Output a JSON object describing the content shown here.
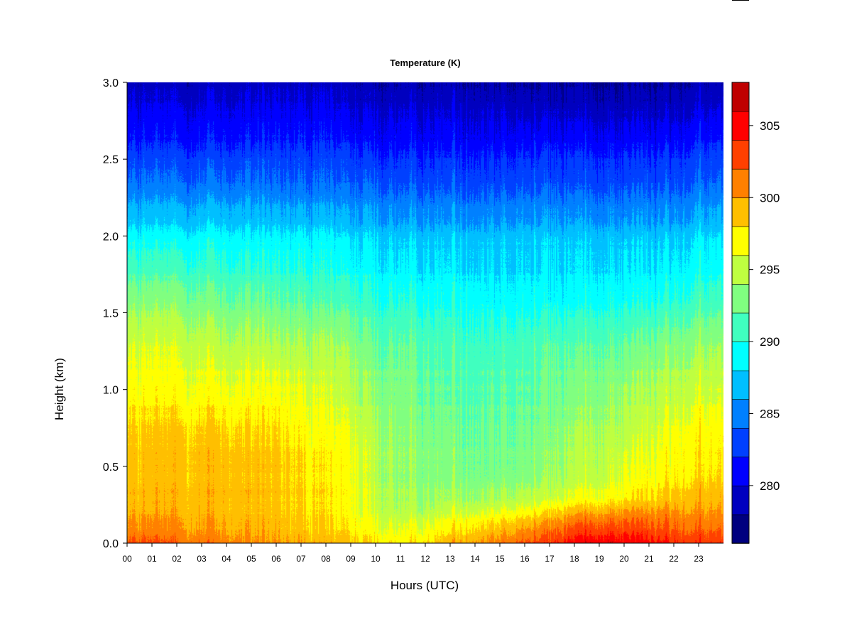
{
  "chart_data": {
    "type": "heatmap",
    "title": "Temperature (K)",
    "xlabel": "Hours (UTC)",
    "ylabel": "Height (km)",
    "xlim": [
      0,
      24
    ],
    "ylim": [
      0,
      3.0
    ],
    "x_tick_labels": [
      "00",
      "01",
      "02",
      "03",
      "04",
      "05",
      "06",
      "07",
      "08",
      "09",
      "10",
      "11",
      "12",
      "13",
      "14",
      "15",
      "16",
      "17",
      "18",
      "19",
      "20",
      "21",
      "22",
      "23"
    ],
    "y_tick_values": [
      0.0,
      0.5,
      1.0,
      1.5,
      2.0,
      2.5,
      3.0
    ],
    "y_tick_labels": [
      "0.0",
      "0.5",
      "1.0",
      "1.5",
      "2.0",
      "2.5",
      "3.0"
    ],
    "colorbar": {
      "min": 276,
      "max": 308,
      "step": 2,
      "tick_values": [
        280,
        285,
        290,
        295,
        300,
        305
      ],
      "tick_labels": [
        "280",
        "285",
        "290",
        "295",
        "300",
        "305"
      ],
      "colors": [
        "#00007f",
        "#0000bf",
        "#0000ff",
        "#0040ff",
        "#0080ff",
        "#00bfff",
        "#00ffff",
        "#40ffbf",
        "#80ff80",
        "#bfff40",
        "#ffff00",
        "#ffbf00",
        "#ff8000",
        "#ff4000",
        "#ff0000",
        "#bf0000"
      ]
    },
    "profile_hours": [
      0,
      1,
      2,
      3,
      4,
      5,
      6,
      7,
      8,
      9,
      10,
      11,
      12,
      13,
      14,
      15,
      16,
      17,
      18,
      19,
      20,
      21,
      22,
      23,
      24
    ],
    "profile_heights_km": [
      0.0,
      0.1,
      0.2,
      0.3,
      0.5,
      0.7,
      1.0,
      1.3,
      1.6,
      2.0,
      2.3,
      2.6,
      2.8,
      3.0
    ],
    "temperature_K": [
      [
        302.5,
        300.5,
        299.5,
        299.0,
        298.8,
        298.3,
        297.0,
        295.5,
        293.0,
        288.5,
        285.0,
        282.0,
        280.5,
        279.0
      ],
      [
        302.5,
        300.5,
        299.5,
        299.0,
        298.8,
        298.3,
        297.0,
        295.5,
        293.0,
        288.5,
        285.0,
        282.0,
        280.5,
        279.0
      ],
      [
        302.0,
        300.3,
        299.5,
        299.2,
        299.0,
        298.5,
        297.0,
        295.5,
        293.0,
        288.5,
        285.0,
        282.0,
        280.5,
        279.0
      ],
      [
        301.5,
        300.0,
        299.3,
        299.0,
        299.0,
        298.5,
        296.8,
        295.0,
        292.5,
        288.5,
        285.0,
        282.0,
        280.5,
        279.0
      ],
      [
        301.0,
        299.7,
        299.0,
        299.0,
        299.0,
        298.3,
        296.5,
        294.5,
        292.0,
        288.5,
        285.0,
        282.0,
        280.5,
        279.0
      ],
      [
        300.5,
        299.3,
        298.8,
        298.8,
        298.8,
        298.0,
        296.5,
        294.5,
        292.0,
        288.0,
        285.0,
        282.0,
        280.5,
        279.0
      ],
      [
        300.0,
        299.0,
        298.5,
        298.3,
        298.5,
        297.8,
        296.5,
        294.0,
        291.5,
        288.0,
        284.5,
        282.0,
        280.5,
        279.0
      ],
      [
        299.7,
        298.5,
        298.0,
        297.8,
        297.8,
        297.0,
        296.0,
        294.0,
        291.5,
        288.0,
        284.5,
        282.0,
        280.5,
        279.0
      ],
      [
        299.3,
        298.0,
        297.5,
        297.3,
        297.3,
        296.5,
        295.5,
        294.0,
        291.0,
        288.0,
        284.5,
        282.0,
        280.5,
        279.0
      ],
      [
        298.8,
        297.5,
        297.0,
        296.8,
        296.8,
        296.0,
        295.0,
        293.5,
        291.0,
        287.5,
        284.5,
        282.0,
        280.0,
        279.0
      ],
      [
        298.0,
        296.5,
        295.5,
        295.0,
        294.8,
        294.5,
        293.5,
        292.0,
        290.0,
        287.5,
        284.5,
        281.5,
        280.0,
        278.5
      ],
      [
        297.5,
        296.0,
        294.5,
        294.0,
        293.8,
        293.5,
        293.0,
        292.0,
        290.0,
        287.0,
        284.0,
        281.5,
        280.0,
        278.5
      ],
      [
        298.0,
        296.5,
        294.8,
        293.8,
        293.3,
        293.0,
        292.5,
        291.5,
        289.5,
        287.0,
        284.0,
        281.5,
        280.0,
        278.5
      ],
      [
        299.5,
        297.3,
        295.5,
        294.0,
        293.0,
        292.5,
        292.0,
        291.0,
        289.5,
        287.0,
        284.0,
        281.5,
        280.0,
        278.5
      ],
      [
        300.5,
        298.3,
        296.0,
        294.0,
        292.8,
        292.5,
        292.0,
        291.0,
        289.5,
        287.0,
        284.0,
        281.5,
        280.0,
        278.5
      ],
      [
        301.5,
        299.0,
        296.5,
        294.3,
        292.8,
        292.5,
        292.0,
        291.0,
        289.0,
        287.0,
        284.0,
        281.5,
        280.0,
        278.5
      ],
      [
        302.5,
        300.0,
        297.0,
        294.5,
        292.8,
        292.3,
        292.0,
        291.0,
        289.0,
        287.0,
        284.0,
        281.5,
        279.5,
        278.0
      ],
      [
        303.5,
        301.0,
        298.0,
        295.0,
        293.5,
        293.0,
        292.5,
        291.5,
        289.0,
        287.0,
        284.0,
        281.5,
        279.5,
        278.0
      ],
      [
        305.0,
        302.5,
        299.5,
        296.0,
        294.5,
        294.0,
        293.0,
        291.5,
        289.0,
        287.0,
        284.0,
        281.5,
        279.5,
        278.0
      ],
      [
        306.0,
        303.0,
        300.0,
        296.5,
        295.0,
        294.5,
        293.5,
        292.0,
        289.5,
        287.0,
        284.0,
        281.5,
        279.5,
        278.0
      ],
      [
        305.5,
        303.0,
        300.5,
        297.3,
        296.0,
        295.0,
        294.0,
        292.0,
        289.5,
        287.0,
        284.0,
        281.5,
        279.5,
        278.0
      ],
      [
        305.0,
        302.5,
        300.5,
        297.8,
        296.5,
        295.5,
        294.5,
        292.5,
        289.5,
        287.0,
        284.0,
        281.5,
        279.5,
        278.0
      ],
      [
        304.0,
        302.0,
        300.5,
        298.5,
        297.0,
        296.5,
        295.0,
        293.0,
        290.0,
        287.0,
        284.0,
        281.5,
        279.5,
        278.0
      ],
      [
        303.5,
        301.5,
        300.0,
        299.0,
        297.5,
        297.0,
        295.5,
        293.5,
        290.5,
        287.5,
        284.5,
        282.0,
        280.0,
        278.5
      ],
      [
        303.5,
        301.5,
        300.0,
        299.0,
        297.5,
        297.0,
        295.5,
        293.5,
        290.5,
        287.5,
        284.5,
        282.0,
        280.0,
        278.5
      ]
    ]
  }
}
